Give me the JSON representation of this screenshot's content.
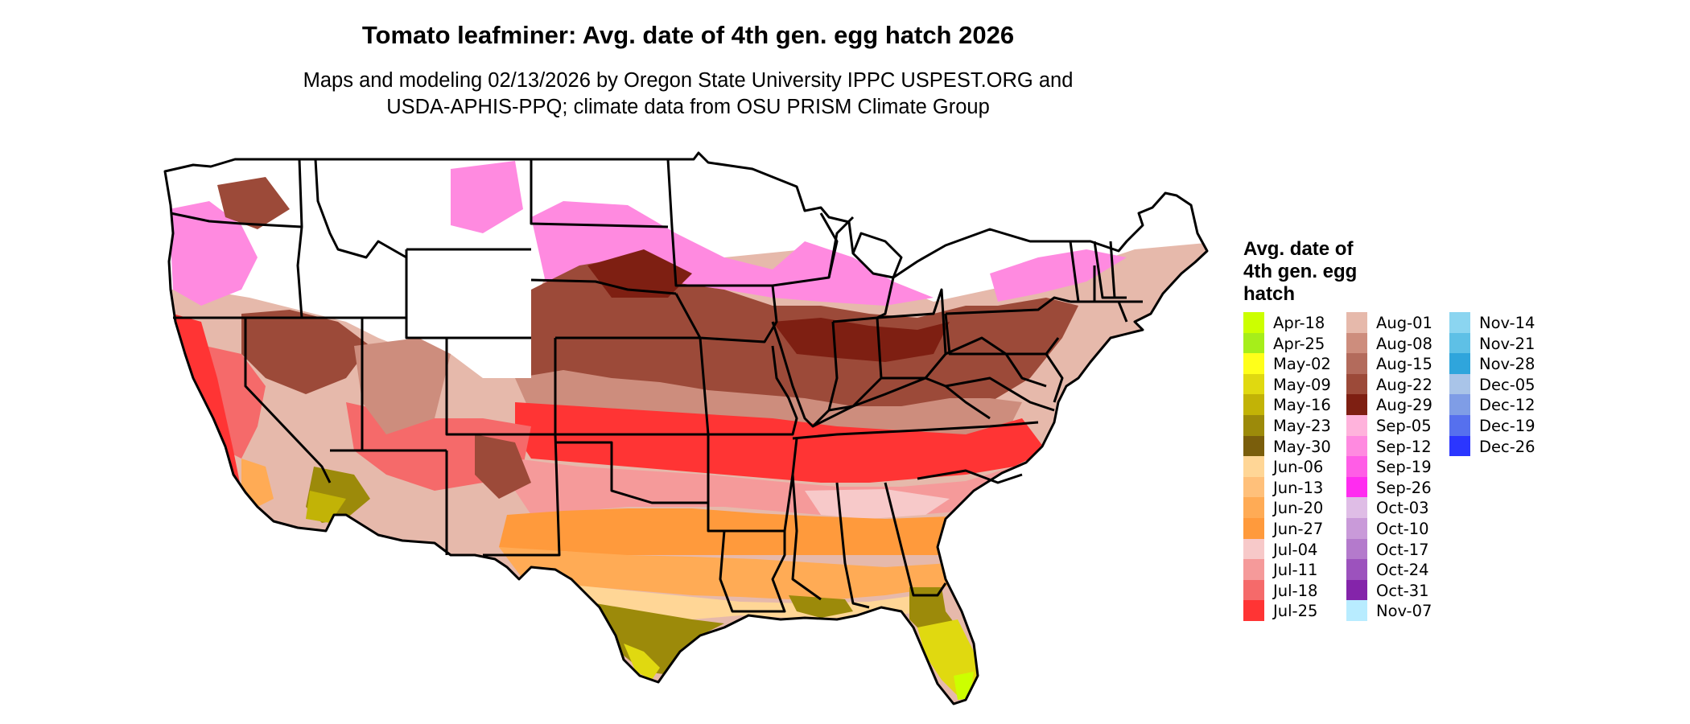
{
  "map": {
    "title": "Tomato leafminer: Avg. date of 4th gen. egg hatch 2026",
    "subtitle_lines": [
      "Maps and modeling 02/13/2026 by Oregon State University IPPC USPEST.ORG and",
      "USDA-APHIS-PPQ; climate data from OSU PRISM Climate Group"
    ],
    "region": "Contiguous United States",
    "legend": {
      "title_lines": [
        "Avg. date of",
        "4th gen. egg",
        "hatch"
      ],
      "columns": [
        [
          {
            "label": "Apr-18",
            "color": "#ccff00"
          },
          {
            "label": "Apr-25",
            "color": "#a6ee1a"
          },
          {
            "label": "May-02",
            "color": "#ffff1a"
          },
          {
            "label": "May-09",
            "color": "#e0d910"
          },
          {
            "label": "May-16",
            "color": "#c2b306"
          },
          {
            "label": "May-23",
            "color": "#9c8a0a"
          },
          {
            "label": "May-30",
            "color": "#7a5e0c"
          },
          {
            "label": "Jun-06",
            "color": "#ffd696"
          },
          {
            "label": "Jun-13",
            "color": "#ffc07a"
          },
          {
            "label": "Jun-20",
            "color": "#ffab55"
          },
          {
            "label": "Jun-27",
            "color": "#ff9a3c"
          },
          {
            "label": "Jul-04",
            "color": "#f7c9c9"
          },
          {
            "label": "Jul-11",
            "color": "#f59a9a"
          },
          {
            "label": "Jul-18",
            "color": "#f56a6a"
          },
          {
            "label": "Jul-25",
            "color": "#ff3434"
          }
        ],
        [
          {
            "label": "Aug-01",
            "color": "#e6b9ab"
          },
          {
            "label": "Aug-08",
            "color": "#cd8d7d"
          },
          {
            "label": "Aug-15",
            "color": "#b36b5c"
          },
          {
            "label": "Aug-22",
            "color": "#9c4a39"
          },
          {
            "label": "Aug-29",
            "color": "#7e1f12"
          },
          {
            "label": "Sep-05",
            "color": "#ffb3dc"
          },
          {
            "label": "Sep-12",
            "color": "#ff8ae0"
          },
          {
            "label": "Sep-19",
            "color": "#ff5de6"
          },
          {
            "label": "Sep-26",
            "color": "#ff2cf0"
          },
          {
            "label": "Oct-03",
            "color": "#dfbde6"
          },
          {
            "label": "Oct-10",
            "color": "#c99ad9"
          },
          {
            "label": "Oct-17",
            "color": "#b47acc"
          },
          {
            "label": "Oct-24",
            "color": "#9c52bd"
          },
          {
            "label": "Oct-31",
            "color": "#8424aa"
          },
          {
            "label": "Nov-07",
            "color": "#b8ecff"
          }
        ],
        [
          {
            "label": "Nov-14",
            "color": "#8bd5f0"
          },
          {
            "label": "Nov-21",
            "color": "#5ec0e6"
          },
          {
            "label": "Nov-28",
            "color": "#2fa5dc"
          },
          {
            "label": "Dec-05",
            "color": "#a9c4e8"
          },
          {
            "label": "Dec-12",
            "color": "#7f9de6"
          },
          {
            "label": "Dec-19",
            "color": "#5670ee"
          },
          {
            "label": "Dec-26",
            "color": "#2b36ff"
          }
        ]
      ]
    }
  }
}
